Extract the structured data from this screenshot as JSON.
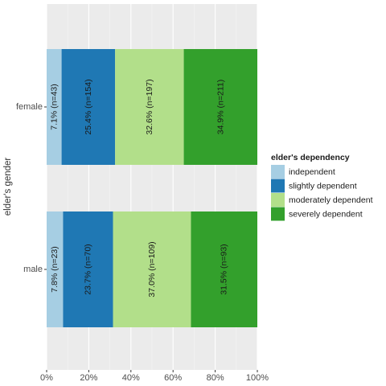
{
  "chart_data": {
    "type": "bar",
    "orientation": "horizontal",
    "stacked": true,
    "percent": true,
    "categories": [
      "female",
      "male"
    ],
    "series": [
      {
        "name": "independent",
        "color": "#a6cee3",
        "values": [
          7.1,
          7.8
        ],
        "labels": [
          "7.1% (n=43)",
          "7.8% (n=23)"
        ]
      },
      {
        "name": "slightly dependent",
        "color": "#1f78b4",
        "values": [
          25.4,
          23.7
        ],
        "labels": [
          "25.4% (n=154)",
          "23.7% (n=70)"
        ]
      },
      {
        "name": "moderately dependent",
        "color": "#b2df8a",
        "values": [
          32.6,
          37.0
        ],
        "labels": [
          "32.6% (n=197)",
          "37.0% (n=109)"
        ]
      },
      {
        "name": "severely dependent",
        "color": "#33a02c",
        "values": [
          34.9,
          31.5
        ],
        "labels": [
          "34.9% (n=211)",
          "31.5% (n=93)"
        ]
      }
    ],
    "xlabel": "",
    "ylabel": "elder's gender",
    "xlim": [
      0,
      100
    ],
    "xticks": [
      "0%",
      "20%",
      "40%",
      "60%",
      "80%",
      "100%"
    ],
    "legend_title": "elder's dependency",
    "legend_position": "right",
    "grid": true,
    "panel_background": "#ebebeb"
  }
}
